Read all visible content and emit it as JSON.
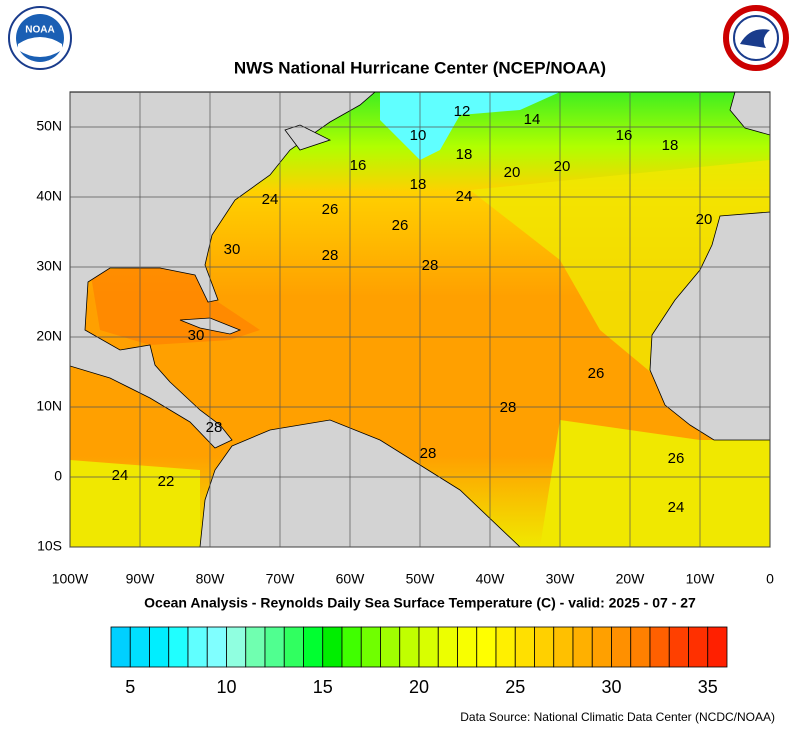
{
  "map": {
    "logo_text": "NOAA",
    "title": "NWS National Hurricane Center (NCEP/NOAA)",
    "subtitle": "Ocean Analysis - Reynolds Daily Sea Surface Temperature (C) - valid: 2025 - 07 - 27",
    "source": "Data Source: National Climatic Data Center (NCDC/NOAA)",
    "lon_range": [
      -100,
      0
    ],
    "lat_range": [
      -10,
      55
    ],
    "lon_ticks": [
      {
        "value": -100,
        "label": "100W"
      },
      {
        "value": -90,
        "label": "90W"
      },
      {
        "value": -80,
        "label": "80W"
      },
      {
        "value": -70,
        "label": "70W"
      },
      {
        "value": -60,
        "label": "60W"
      },
      {
        "value": -50,
        "label": "50W"
      },
      {
        "value": -40,
        "label": "40W"
      },
      {
        "value": -30,
        "label": "30W"
      },
      {
        "value": -20,
        "label": "20W"
      },
      {
        "value": -10,
        "label": "10W"
      },
      0
    ],
    "lat_ticks": [
      {
        "value": 50,
        "label": "50N"
      },
      {
        "value": 40,
        "label": "40N"
      },
      {
        "value": 30,
        "label": "30N"
      },
      {
        "value": 20,
        "label": "20N"
      },
      {
        "value": 10,
        "label": "10N"
      },
      0,
      {
        "value": -10,
        "label": "10S"
      }
    ],
    "contour_labels": [
      "12",
      "14",
      "10",
      "16",
      "18",
      "16",
      "18",
      "20",
      "20",
      "18",
      "24",
      "24",
      "26",
      "26",
      "30",
      "28",
      "28",
      "30",
      "26",
      "28",
      "28",
      "28",
      "26",
      "24",
      "22",
      "24",
      "20"
    ],
    "colorbar": {
      "range": [
        4,
        36
      ],
      "ticks": [
        5,
        10,
        15,
        20,
        25,
        30,
        35
      ],
      "colors": [
        "#00d0ff",
        "#00e0ff",
        "#00eeff",
        "#20ffff",
        "#60ffff",
        "#80ffff",
        "#90ffe0",
        "#70ffb0",
        "#50ff90",
        "#30ff60",
        "#00ff30",
        "#00ee00",
        "#40ff00",
        "#70ff00",
        "#a0ff00",
        "#c0ff00",
        "#d8ff00",
        "#ecff00",
        "#f8ff00",
        "#ffff00",
        "#fff000",
        "#ffe000",
        "#ffd000",
        "#ffc000",
        "#ffb000",
        "#ffa000",
        "#ff9000",
        "#ff8000",
        "#ff6000",
        "#ff4000",
        "#ff3000",
        "#ff2000"
      ]
    }
  }
}
